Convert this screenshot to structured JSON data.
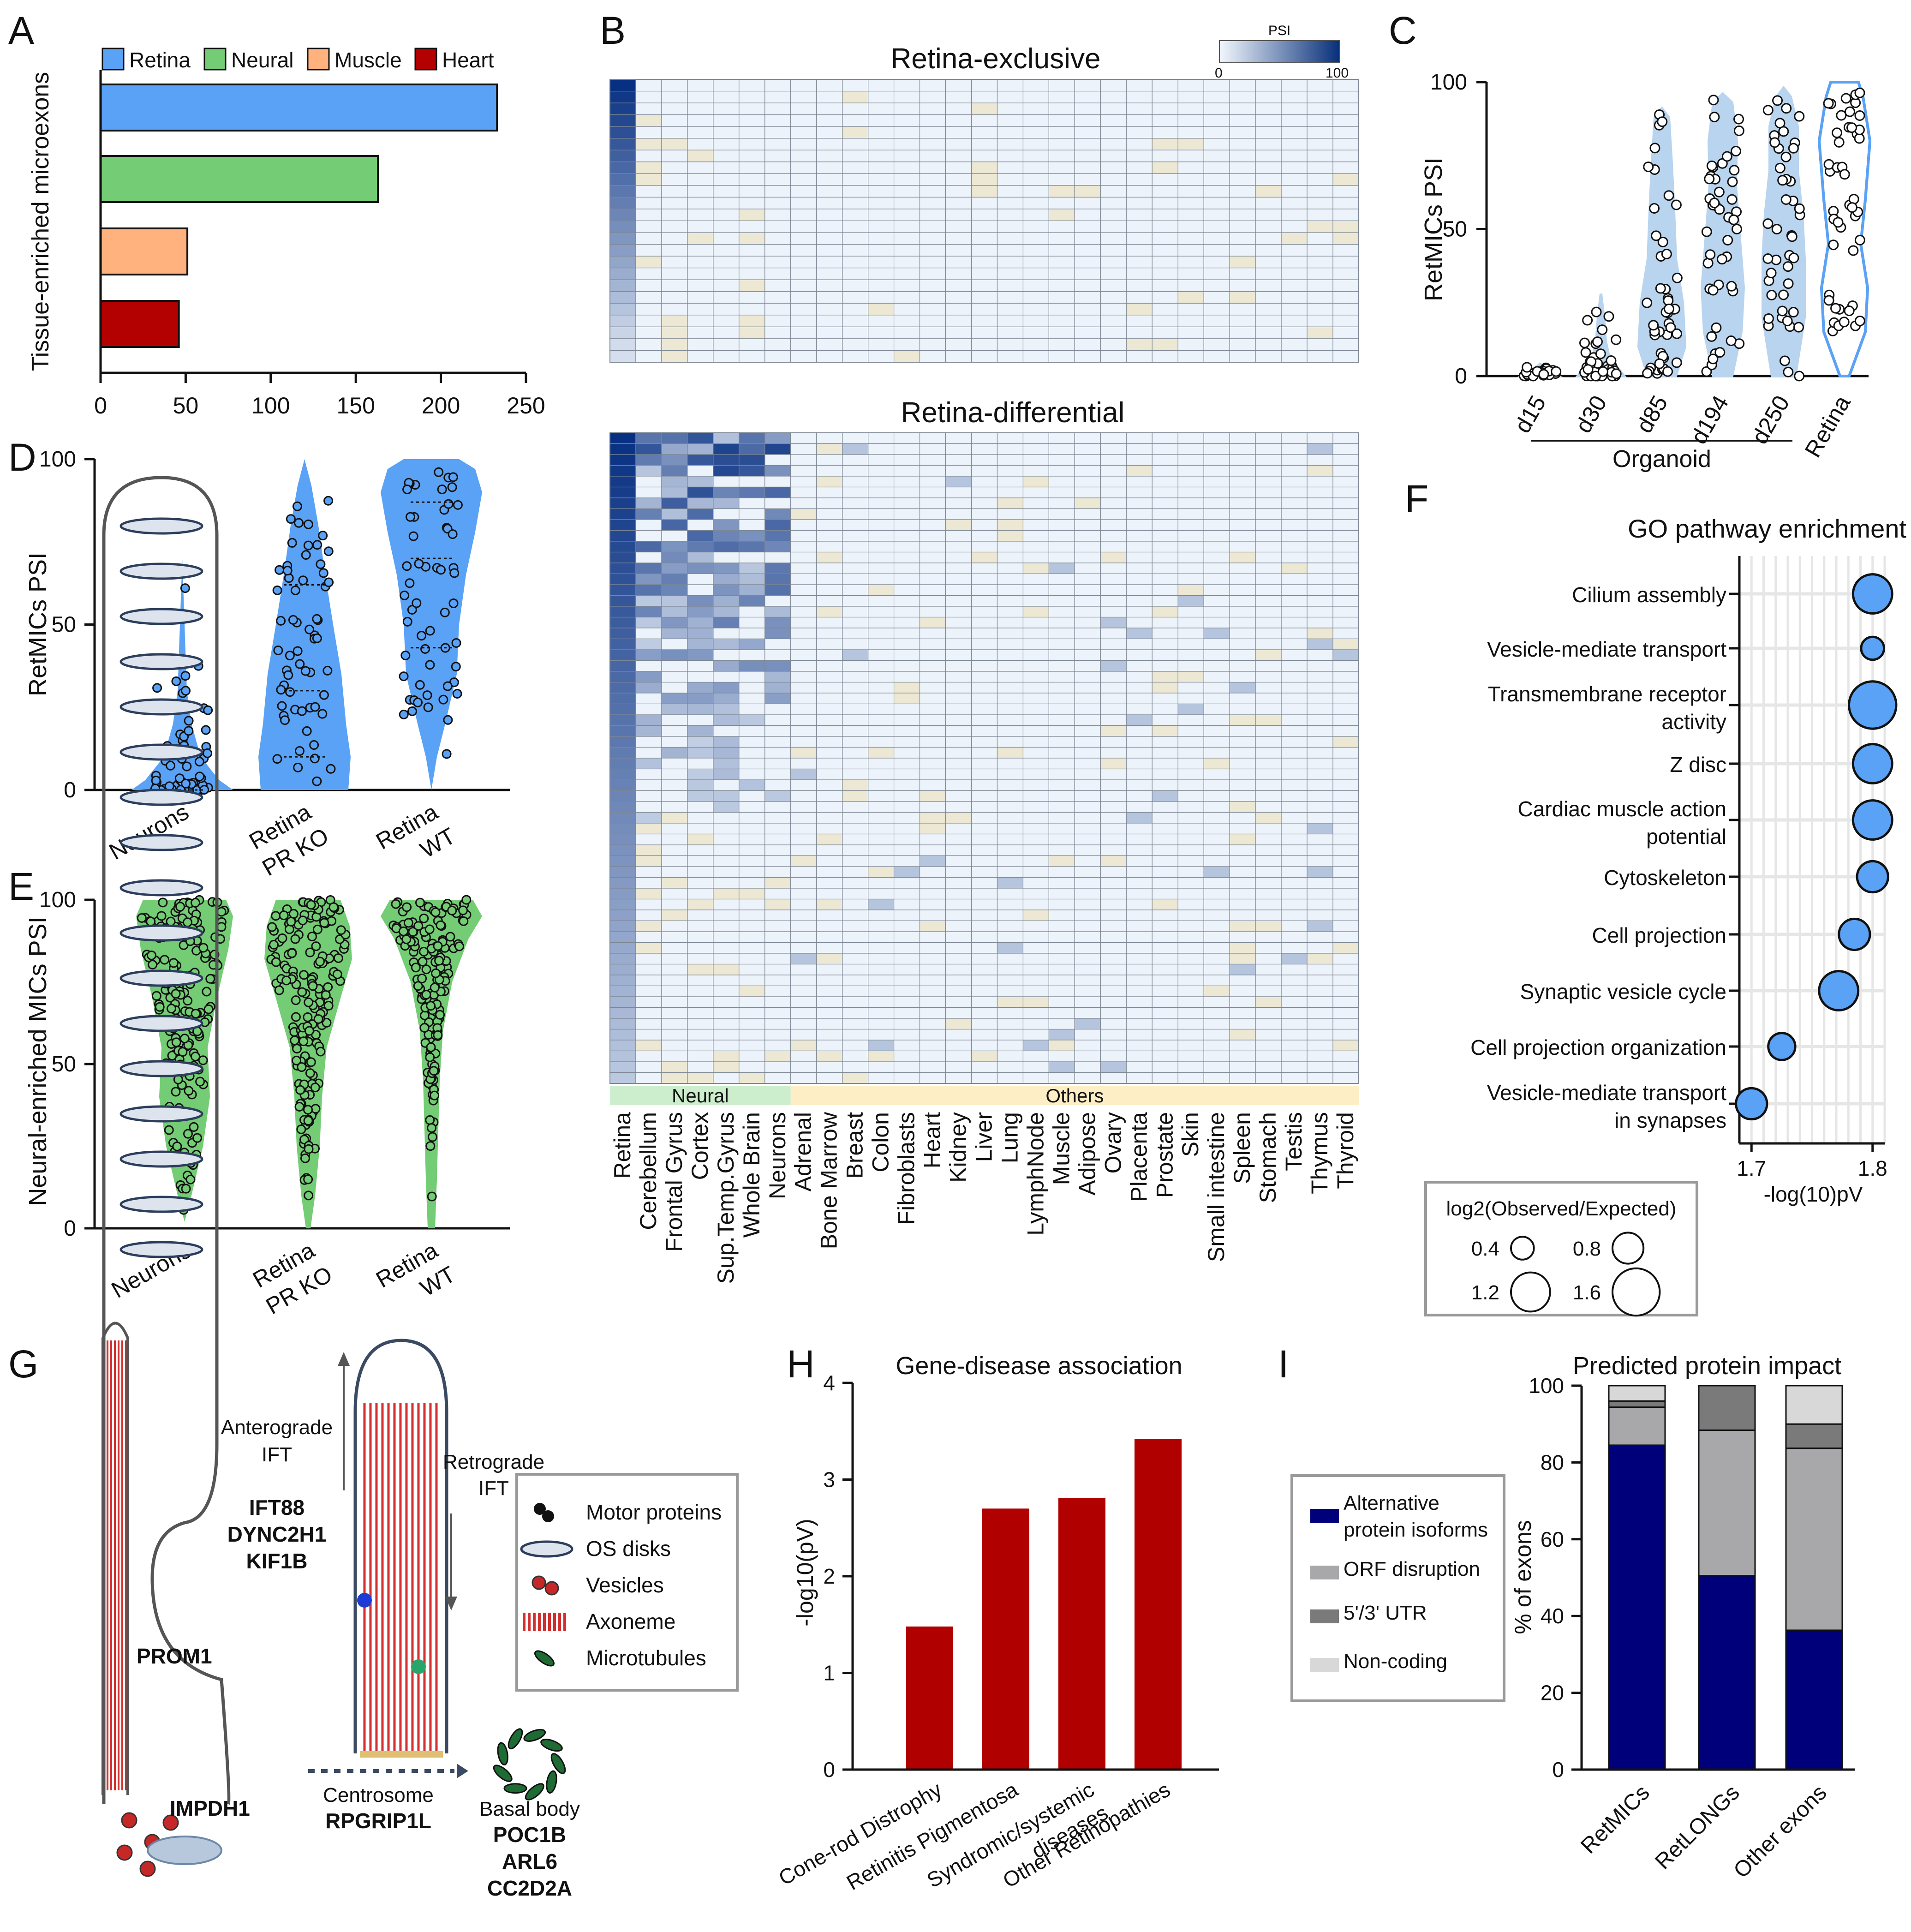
{
  "panel_letters": [
    "A",
    "B",
    "C",
    "D",
    "E",
    "F",
    "G",
    "H",
    "I"
  ],
  "colors": {
    "retina": "#5aa2f5",
    "neural": "#74cc74",
    "muscle": "#ffb27d",
    "heart": "#b30000",
    "darkred": "#b00000",
    "navy": "#00007a",
    "gray_mid": "#a8a8ab",
    "gray_dark": "#7a7a7a",
    "gray_light": "#d8d8d8",
    "light_blue": "#b8d4ee"
  },
  "chart_data": [
    {
      "panel": "A",
      "type": "bar",
      "orientation": "horizontal",
      "ylabel": "Tissue-enriched microexons",
      "categories": [
        "Retina",
        "Neural",
        "Muscle",
        "Heart"
      ],
      "values": [
        233,
        163,
        51,
        46
      ],
      "legend": [
        "Retina",
        "Neural",
        "Muscle",
        "Heart"
      ],
      "xlim": [
        0,
        250
      ],
      "xticks": [
        "0",
        "50",
        "100",
        "150",
        "200",
        "250"
      ]
    },
    {
      "panel": "B",
      "type": "heatmap",
      "titles": [
        "Retina-exclusive",
        "Retina-differential"
      ],
      "colorbar": {
        "label": "PSI",
        "min": "0",
        "max": "100"
      },
      "columns": [
        "Retina",
        "Cerebellum",
        "Frontal Gyrus",
        "Cortex",
        "Sup.Temp.Gyrus",
        "Whole Brain",
        "Neurons",
        "Adrenal",
        "Bone Marrow",
        "Breast",
        "Colon",
        "Fibroblasts",
        "Heart",
        "Kidney",
        "Liver",
        "Lung",
        "LymphNode",
        "Muscle",
        "Adipose",
        "Ovary",
        "Placenta",
        "Prostate",
        "Skin",
        "Small intestine",
        "Spleen",
        "Stomach",
        "Testis",
        "Thymus",
        "Thyroid"
      ],
      "groups": [
        "Neural",
        "Others"
      ],
      "rows_exclusive": 24,
      "rows_differential": 60
    },
    {
      "panel": "C",
      "type": "violin",
      "ylabel": "RetMICs PSI",
      "ylim": [
        0,
        100
      ],
      "yticks": [
        "0",
        "50",
        "100"
      ],
      "categories": [
        "d15",
        "d30",
        "d85",
        "d194",
        "d250",
        "Retina"
      ],
      "group_label": "Organoid",
      "medians": [
        0,
        1,
        22,
        35,
        38,
        55
      ]
    },
    {
      "panel": "D",
      "type": "violin",
      "ylabel": "RetMICs PSI",
      "ylim": [
        0,
        100
      ],
      "yticks": [
        "0",
        "50",
        "100"
      ],
      "categories": [
        "Neurons",
        "Retina PR KO",
        "Retina WT"
      ],
      "medians": [
        5,
        30,
        70
      ]
    },
    {
      "panel": "E",
      "type": "violin",
      "ylabel": "Neural-enriched MICs  PSI",
      "ylim": [
        0,
        100
      ],
      "yticks": [
        "0",
        "50",
        "100"
      ],
      "categories": [
        "Neurons",
        "Retina PR KO",
        "Retina WT"
      ],
      "medians": [
        75,
        75,
        90
      ]
    },
    {
      "panel": "F",
      "type": "scatter",
      "title": "GO pathway enrichment",
      "xlabel": "-log(10)pV",
      "xticks": [
        "1.7",
        "1.8"
      ],
      "terms": [
        "Cilium assembly",
        "Vesicle-mediate transport",
        "Transmembrane receptor activity",
        "Z disc",
        "Cardiac muscle action potential",
        "Cytoskeleton",
        "Cell projection",
        "Synaptic vesicle cycle",
        "Cell projection organization",
        "Vesicle-mediate transport in synapses"
      ],
      "term_lines": [
        [
          "Cilium assembly"
        ],
        [
          "Vesicle-mediate transport"
        ],
        [
          "Transmembrane receptor",
          "activity"
        ],
        [
          "Z disc"
        ],
        [
          "Cardiac muscle action",
          "potential"
        ],
        [
          "Cytoskeleton"
        ],
        [
          "Cell projection"
        ],
        [
          "Synaptic vesicle cycle"
        ],
        [
          "Cell projection organization"
        ],
        [
          "Vesicle-mediate transport",
          "in synapses"
        ]
      ],
      "x": [
        1.8,
        1.8,
        1.8,
        1.8,
        1.8,
        1.8,
        1.785,
        1.772,
        1.725,
        1.7
      ],
      "size": [
        1.2,
        0.4,
        1.6,
        1.2,
        1.2,
        0.8,
        0.8,
        1.2,
        0.6,
        0.8
      ],
      "size_legend_title": "log2(Observed/Expected)",
      "size_legend": [
        {
          "label": "0.4",
          "v": 0.4
        },
        {
          "label": "0.8",
          "v": 0.8
        },
        {
          "label": "1.2",
          "v": 1.2
        },
        {
          "label": "1.6",
          "v": 1.6
        }
      ]
    },
    {
      "panel": "H",
      "type": "bar",
      "title": "Gene-disease association",
      "ylabel": "-log10(pV)",
      "ylim": [
        0,
        4
      ],
      "yticks": [
        "0",
        "1",
        "2",
        "3",
        "4"
      ],
      "categories": [
        "Cone-rod Distrophy",
        "Retinitis Pigmentosa",
        "Syndromic/systemic diseases",
        "Other Retinopathies"
      ],
      "category_lines": [
        [
          "Cone-rod Distrophy"
        ],
        [
          "Retinitis Pigmentosa"
        ],
        [
          "Syndromic/systemic",
          "diseases"
        ],
        [
          "Other Retinopathies"
        ]
      ],
      "values": [
        1.48,
        2.7,
        2.81,
        3.42
      ]
    },
    {
      "panel": "I",
      "type": "bar",
      "stacked": true,
      "title": "Predicted protein impact",
      "ylabel": "% of exons",
      "ylim": [
        0,
        100
      ],
      "yticks": [
        "0",
        "20",
        "40",
        "60",
        "80",
        "100"
      ],
      "categories": [
        "RetMICs",
        "RetLONGs",
        "Other exons"
      ],
      "series": [
        {
          "name": "Alternative protein isoforms",
          "values": [
            84.5,
            50.5,
            36.3
          ]
        },
        {
          "name": "ORF disruption",
          "values": [
            9.9,
            37.9,
            47.4
          ]
        },
        {
          "name": "5'/3' UTR",
          "values": [
            1.6,
            11.6,
            6.3
          ]
        },
        {
          "name": "Non-coding",
          "values": [
            4.0,
            0,
            10.0
          ]
        }
      ],
      "legend_lines": [
        [
          "Alternative",
          "protein isoforms"
        ],
        [
          "ORF disruption"
        ],
        [
          "5'/3' UTR"
        ],
        [
          "Non-coding"
        ]
      ]
    }
  ],
  "diagram_g": {
    "anterograde": [
      "Anterograde",
      "IFT"
    ],
    "retrograde": [
      "Retrograde",
      "IFT"
    ],
    "genes_ift": [
      "IFT88",
      "DYNC2H1",
      "KIF1B"
    ],
    "prom1": "PROM1",
    "impdh1": "IMPDH1",
    "centrosome": "Centrosome",
    "rpgrip1l": "RPGRIP1L",
    "basal_body": "Basal body",
    "genes_bb": [
      "POC1B",
      "ARL6",
      "CC2D2A"
    ],
    "legend": [
      "Motor proteins",
      "OS disks",
      "Vesicles",
      "Axoneme",
      "Microtubules"
    ]
  }
}
